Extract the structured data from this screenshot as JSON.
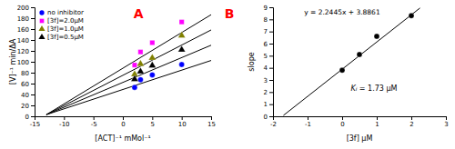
{
  "chart_data": [
    {
      "type": "scatter",
      "xlabel": "[ACT]⁻¹ mMol⁻¹",
      "ylabel": "[V]⁻¹ min/ΔA",
      "xlim": [
        -15,
        15
      ],
      "ylim": [
        0,
        200
      ],
      "xticks": [
        -15,
        -10,
        -5,
        0,
        5,
        10,
        15
      ],
      "yticks": [
        0,
        20,
        40,
        60,
        80,
        100,
        120,
        140,
        160,
        180,
        200
      ],
      "grid": false,
      "legend": "upper left",
      "annotations": [
        {
          "text": "A",
          "color": "#ff0000"
        }
      ],
      "series": [
        {
          "type": "line",
          "color": "#000000",
          "x": [
            -13,
            15
          ],
          "values": [
            3,
            102.4
          ]
        },
        {
          "type": "line",
          "color": "#000000",
          "x": [
            -13,
            15
          ],
          "values": [
            3,
            130.4
          ]
        },
        {
          "type": "line",
          "color": "#000000",
          "x": [
            -13,
            15
          ],
          "values": [
            3,
            158.4
          ]
        },
        {
          "type": "line",
          "color": "#000000",
          "x": [
            -13,
            15
          ],
          "values": [
            3,
            186.4
          ]
        },
        {
          "name": "no inhibitor",
          "color": "#0000ff",
          "marker": "circle",
          "x": [
            2,
            3,
            5,
            10
          ],
          "values": [
            53,
            67,
            76,
            95
          ]
        },
        {
          "name": "[3f]=2.0μM",
          "color": "#ff00ff",
          "marker": "square",
          "x": [
            2,
            3,
            5,
            10
          ],
          "values": [
            94,
            118,
            135,
            173
          ]
        },
        {
          "name": "[3f]=1.0μM",
          "color": "#808000",
          "marker": "triangle",
          "x": [
            2,
            3,
            5,
            10
          ],
          "values": [
            77,
            96,
            107,
            148
          ]
        },
        {
          "name": "[3f]=0.5μM",
          "color": "#000000",
          "marker": "triangle",
          "x": [
            2,
            3,
            5,
            10
          ],
          "values": [
            68,
            82,
            93,
            122
          ]
        }
      ]
    },
    {
      "type": "scatter",
      "xlabel": "[3f] μM",
      "ylabel": "slope",
      "xlim": [
        -2,
        3
      ],
      "ylim": [
        0,
        9
      ],
      "xticks": [
        -2,
        -1,
        0,
        1,
        2,
        3
      ],
      "yticks": [
        0,
        1,
        2,
        3,
        4,
        5,
        6,
        7,
        8,
        9
      ],
      "grid": false,
      "annotations": [
        {
          "text": "y = 2.2445x + 3.8861"
        },
        {
          "text": "Ki = 1.73 μM"
        },
        {
          "text": "B",
          "color": "#ff0000"
        }
      ],
      "series": [
        {
          "type": "line",
          "color": "#000000",
          "x": [
            -1.7,
            2.25
          ],
          "values": [
            0.07045,
            8.936225
          ]
        },
        {
          "color": "#000000",
          "marker": "circle",
          "x": [
            0,
            0.5,
            1,
            2
          ],
          "values": [
            3.8,
            5.1,
            6.6,
            8.3
          ]
        }
      ]
    }
  ]
}
